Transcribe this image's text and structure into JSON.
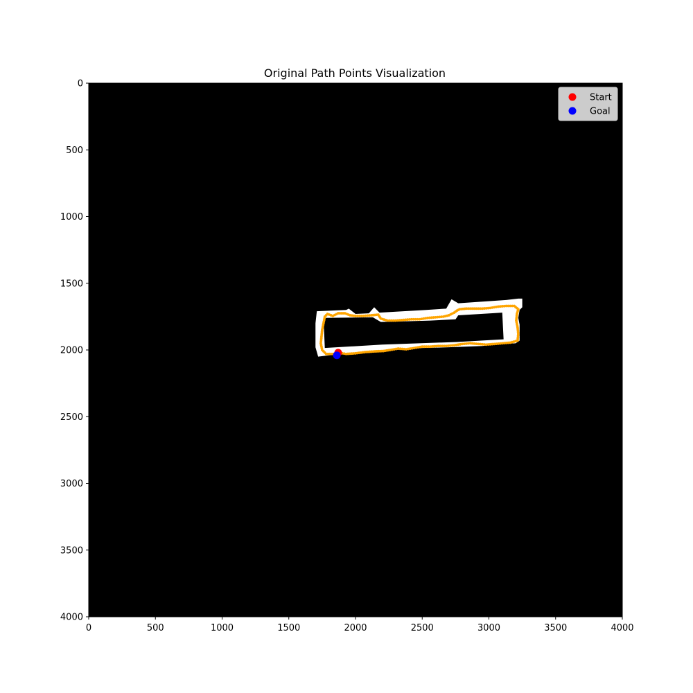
{
  "chart_data": {
    "type": "scatter",
    "title": "Original Path Points Visualization",
    "xlabel": "",
    "ylabel": "",
    "xlim": [
      0,
      4000
    ],
    "ylim": [
      4000,
      0
    ],
    "x_ticks": [
      "0",
      "500",
      "1000",
      "1500",
      "2000",
      "2500",
      "3000",
      "3500",
      "4000"
    ],
    "y_ticks": [
      "0",
      "500",
      "1000",
      "1500",
      "2000",
      "2500",
      "3000",
      "3500",
      "4000"
    ],
    "grid": false,
    "legend": {
      "placement": "top-right",
      "entries": [
        "Start",
        "Goal"
      ]
    },
    "colors": {
      "background": "#000000",
      "free_space": "#ffffff",
      "path": "#ffa500",
      "start": "#ff0000",
      "goal": "#0000ff"
    },
    "free_space_polygons": [
      [
        [
          1710,
          1710
        ],
        [
          1930,
          1700
        ],
        [
          1950,
          1690
        ],
        [
          2000,
          1730
        ],
        [
          2100,
          1725
        ],
        [
          2140,
          1680
        ],
        [
          2180,
          1720
        ],
        [
          2530,
          1700
        ],
        [
          2680,
          1690
        ],
        [
          2720,
          1620
        ],
        [
          2770,
          1650
        ],
        [
          3130,
          1625
        ],
        [
          3220,
          1615
        ],
        [
          3250,
          1615
        ],
        [
          3250,
          1680
        ],
        [
          3230,
          1700
        ],
        [
          3220,
          1760
        ],
        [
          3230,
          1810
        ],
        [
          3230,
          1870
        ],
        [
          3230,
          1930
        ],
        [
          3200,
          1950
        ],
        [
          3100,
          1955
        ],
        [
          2950,
          1970
        ],
        [
          2700,
          1980
        ],
        [
          2500,
          1985
        ],
        [
          2300,
          2000
        ],
        [
          2100,
          2015
        ],
        [
          2000,
          2020
        ],
        [
          1900,
          2030
        ],
        [
          1800,
          2040
        ],
        [
          1720,
          2050
        ],
        [
          1700,
          1980
        ],
        [
          1700,
          1900
        ],
        [
          1700,
          1800
        ]
      ],
      [
        [
          1760,
          1760
        ],
        [
          2150,
          1745
        ],
        [
          2160,
          1740
        ],
        [
          2160,
          1950
        ],
        [
          2150,
          1965
        ],
        [
          1760,
          1985
        ]
      ],
      [
        [
          2160,
          1750
        ],
        [
          2560,
          1740
        ],
        [
          2560,
          1950
        ],
        [
          2160,
          1970
        ]
      ],
      [
        [
          2560,
          1740
        ],
        [
          2750,
          1730
        ],
        [
          2750,
          1935
        ],
        [
          2560,
          1945
        ]
      ],
      [
        [
          2750,
          1730
        ],
        [
          3110,
          1705
        ],
        [
          3110,
          1915
        ],
        [
          2750,
          1935
        ]
      ]
    ],
    "black_interior": [
      [
        1760,
        1760
      ],
      [
        2130,
        1755
      ],
      [
        2190,
        1790
      ],
      [
        2560,
        1780
      ],
      [
        2750,
        1770
      ],
      [
        2770,
        1740
      ],
      [
        3100,
        1720
      ],
      [
        3110,
        1920
      ],
      [
        2760,
        1940
      ],
      [
        2200,
        1960
      ],
      [
        1770,
        1985
      ]
    ],
    "path": [
      [
        1870,
        2020
      ],
      [
        1930,
        2030
      ],
      [
        2000,
        2025
      ],
      [
        2080,
        2015
      ],
      [
        2160,
        2010
      ],
      [
        2210,
        2008
      ],
      [
        2260,
        2000
      ],
      [
        2320,
        1990
      ],
      [
        2380,
        1995
      ],
      [
        2440,
        1985
      ],
      [
        2500,
        1975
      ],
      [
        2560,
        1975
      ],
      [
        2620,
        1970
      ],
      [
        2680,
        1970
      ],
      [
        2740,
        1965
      ],
      [
        2800,
        1955
      ],
      [
        2860,
        1950
      ],
      [
        2920,
        1955
      ],
      [
        2980,
        1960
      ],
      [
        3040,
        1955
      ],
      [
        3100,
        1950
      ],
      [
        3160,
        1945
      ],
      [
        3215,
        1930
      ],
      [
        3220,
        1880
      ],
      [
        3215,
        1830
      ],
      [
        3205,
        1780
      ],
      [
        3210,
        1730
      ],
      [
        3220,
        1695
      ],
      [
        3190,
        1670
      ],
      [
        3130,
        1670
      ],
      [
        3070,
        1675
      ],
      [
        3010,
        1685
      ],
      [
        2950,
        1690
      ],
      [
        2890,
        1690
      ],
      [
        2830,
        1690
      ],
      [
        2780,
        1695
      ],
      [
        2760,
        1705
      ],
      [
        2740,
        1720
      ],
      [
        2700,
        1740
      ],
      [
        2660,
        1750
      ],
      [
        2600,
        1755
      ],
      [
        2540,
        1760
      ],
      [
        2480,
        1770
      ],
      [
        2420,
        1770
      ],
      [
        2360,
        1775
      ],
      [
        2300,
        1780
      ],
      [
        2240,
        1780
      ],
      [
        2190,
        1765
      ],
      [
        2170,
        1735
      ],
      [
        2120,
        1740
      ],
      [
        2060,
        1745
      ],
      [
        2000,
        1745
      ],
      [
        1960,
        1740
      ],
      [
        1920,
        1725
      ],
      [
        1870,
        1725
      ],
      [
        1830,
        1745
      ],
      [
        1790,
        1730
      ],
      [
        1770,
        1750
      ],
      [
        1760,
        1800
      ],
      [
        1750,
        1850
      ],
      [
        1745,
        1900
      ],
      [
        1740,
        1950
      ],
      [
        1750,
        2000
      ],
      [
        1780,
        2030
      ],
      [
        1830,
        2030
      ],
      [
        1870,
        2020
      ]
    ],
    "start": [
      1870,
      2020
    ],
    "goal": [
      1860,
      2040
    ]
  }
}
